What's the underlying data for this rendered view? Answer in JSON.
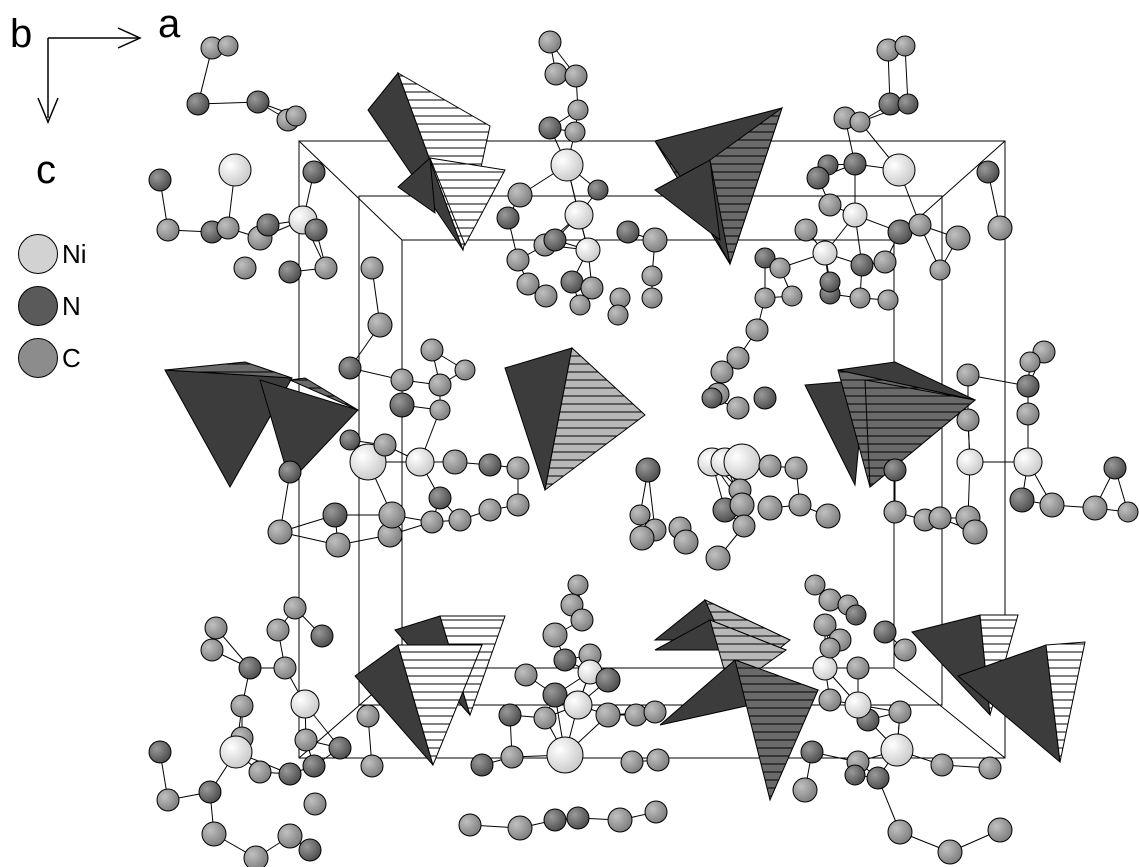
{
  "axes": {
    "b": "b",
    "a": "a",
    "c": "c"
  },
  "legend": [
    {
      "label": "Ni",
      "color": "#d2d2d2"
    },
    {
      "label": "N",
      "color": "#5a5a5a"
    },
    {
      "label": "C",
      "color": "#8c8c8c"
    }
  ],
  "colors": {
    "tetra_dark": "#3c3c3c",
    "tetra_mid": "#707070",
    "tetra_light": "#b4b4b4",
    "bond": "#000000"
  },
  "icons": [
    "axis-arrow-a-icon",
    "axis-arrow-c-icon"
  ]
}
